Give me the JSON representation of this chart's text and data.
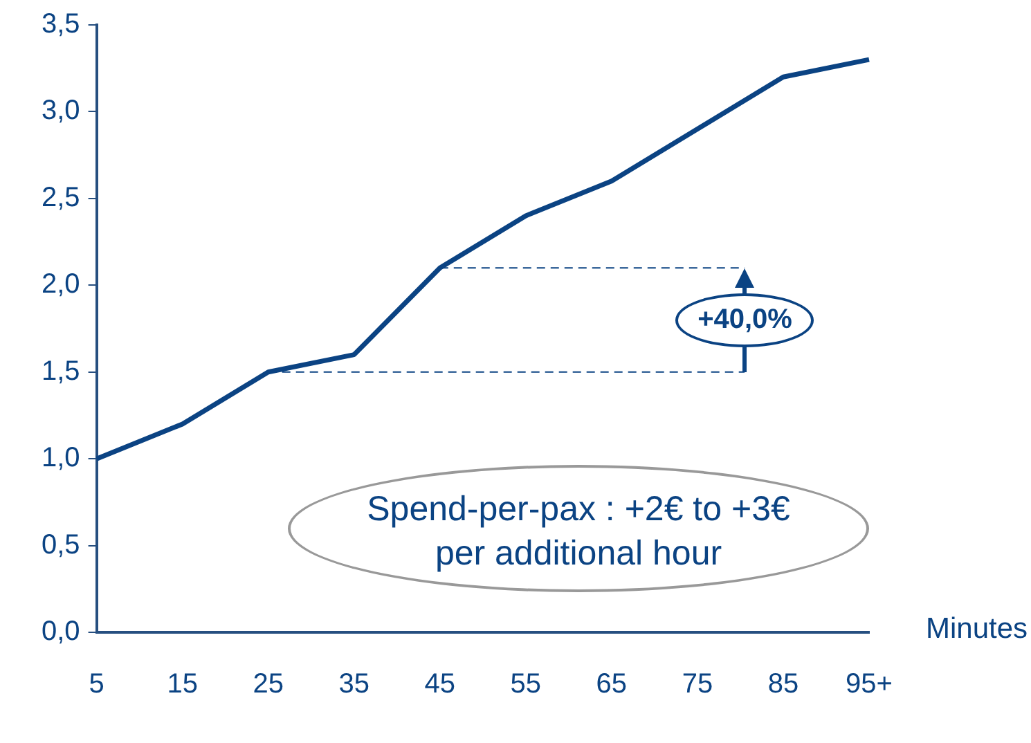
{
  "chart_data": {
    "type": "line",
    "xlabel": "Minutes",
    "categories": [
      "5",
      "15",
      "25",
      "35",
      "45",
      "55",
      "65",
      "75",
      "85",
      "95+"
    ],
    "series": [
      {
        "color": "#0b4383",
        "values": [
          1.0,
          1.2,
          1.5,
          1.6,
          2.1,
          2.4,
          2.6,
          2.9,
          3.2,
          3.3
        ]
      }
    ],
    "ylim": [
      0,
      3.5
    ],
    "yticks": [
      {
        "value": 0,
        "label": "0,0"
      },
      {
        "value": 0.5,
        "label": "0,5"
      },
      {
        "value": 1,
        "label": "1,0"
      },
      {
        "value": 1.5,
        "label": "1,5"
      },
      {
        "value": 2,
        "label": "2,0"
      },
      {
        "value": 2.5,
        "label": "2,5"
      },
      {
        "value": 3,
        "label": "3,0"
      },
      {
        "value": 3.5,
        "label": "3,5"
      }
    ],
    "grid": false,
    "legend": false,
    "marker": "none",
    "line_style": "solid",
    "ref_lines": [
      {
        "axis": "y",
        "value": 1.5,
        "color": "#0b4383",
        "line_style": "dashed"
      },
      {
        "axis": "y",
        "value": 2.1,
        "color": "#0b4383",
        "line_style": "dashed"
      }
    ],
    "annotations": [
      "+40,0%",
      "Spend-per-pax : +2€ to +3€ per additional hour"
    ]
  }
}
